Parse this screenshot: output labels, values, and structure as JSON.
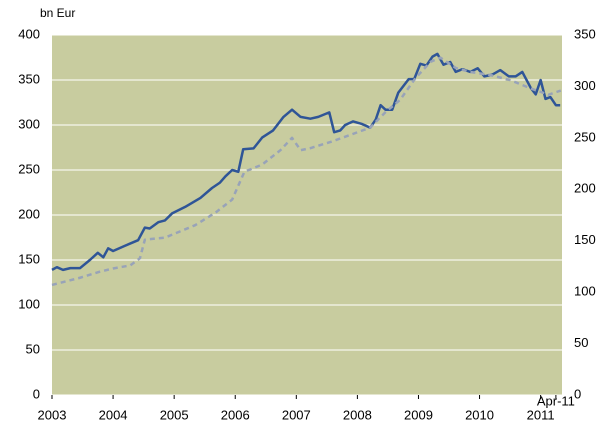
{
  "chart_data": {
    "type": "line",
    "y_label": "bn Eur",
    "background": "#c8cc9f",
    "grid": true,
    "xlim": [
      2003,
      2011.35
    ],
    "xticks": [
      2003,
      2004,
      2005,
      2006,
      2007,
      2008,
      2009,
      2010,
      2011,
      {
        "value": 2011.25,
        "label": "Apr-11"
      }
    ],
    "ylim": [
      0,
      400
    ],
    "yticks": [
      0,
      50,
      100,
      150,
      200,
      250,
      300,
      350,
      400
    ],
    "y2lim": [
      0,
      350
    ],
    "y2ticks": [
      0,
      50,
      100,
      150,
      200,
      250,
      300,
      350
    ],
    "series": [
      {
        "color": "#2f5597",
        "dash": false,
        "x": [
          2003.0,
          2003.08,
          2003.18,
          2003.3,
          2003.46,
          2003.62,
          2003.75,
          2003.84,
          2003.92,
          2004.0,
          2004.2,
          2004.41,
          2004.52,
          2004.6,
          2004.74,
          2004.85,
          2004.97,
          2005.18,
          2005.43,
          2005.62,
          2005.75,
          2005.84,
          2005.95,
          2006.05,
          2006.13,
          2006.3,
          2006.44,
          2006.62,
          2006.79,
          2006.93,
          2007.07,
          2007.23,
          2007.36,
          2007.54,
          2007.62,
          2007.72,
          2007.8,
          2007.93,
          2008.08,
          2008.21,
          2008.3,
          2008.38,
          2008.46,
          2008.57,
          2008.67,
          2008.84,
          2008.93,
          2009.03,
          2009.13,
          2009.23,
          2009.31,
          2009.41,
          2009.52,
          2009.61,
          2009.72,
          2009.85,
          2009.97,
          2010.08,
          2010.21,
          2010.34,
          2010.48,
          2010.59,
          2010.7,
          2010.84,
          2010.92,
          2011.0,
          2011.08,
          2011.16,
          2011.25,
          2011.32
        ],
        "values": [
          139,
          142,
          139,
          141,
          141,
          150,
          158,
          153,
          163,
          160,
          166,
          172,
          186,
          185,
          192,
          194,
          202,
          209,
          219,
          230,
          236,
          243,
          250,
          248,
          273,
          274,
          286,
          294,
          309,
          317,
          309,
          307,
          309,
          314,
          292,
          294,
          300,
          304,
          301,
          297,
          306,
          322,
          317,
          317,
          336,
          351,
          351,
          368,
          366,
          376,
          379,
          367,
          370,
          359,
          362,
          359,
          363,
          354,
          356,
          361,
          354,
          354,
          359,
          341,
          334,
          350,
          329,
          331,
          322,
          322
        ]
      },
      {
        "color": "#98a3b8",
        "dash": true,
        "axis": "y2",
        "x": [
          2003.0,
          2003.46,
          2003.79,
          2004.0,
          2004.28,
          2004.44,
          2004.52,
          2004.85,
          2005.34,
          2005.67,
          2005.95,
          2006.15,
          2006.44,
          2006.74,
          2006.93,
          2007.07,
          2007.23,
          2007.56,
          2007.89,
          2008.21,
          2008.46,
          2008.7,
          2008.95,
          2009.2,
          2009.36,
          2009.61,
          2009.85,
          2010.18,
          2010.51,
          2010.84,
          2011.13,
          2011.33
        ],
        "values": [
          107,
          114,
          120,
          123,
          126,
          133,
          151,
          153,
          165,
          177,
          190,
          217,
          224,
          238,
          250,
          238,
          240,
          246,
          253,
          260,
          275,
          287,
          308,
          324,
          328,
          318,
          314,
          311,
          306,
          298,
          292,
          296
        ]
      }
    ]
  }
}
